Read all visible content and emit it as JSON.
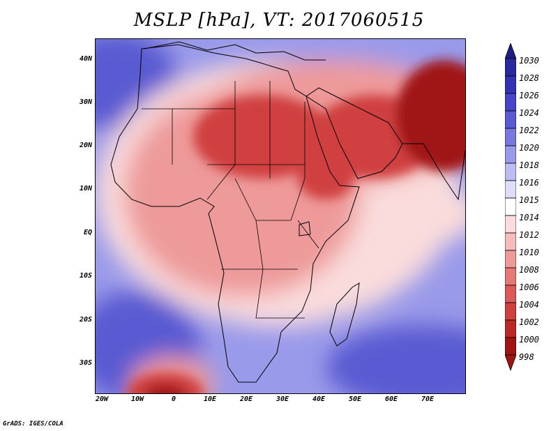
{
  "title": "MSLP [hPa], VT: 2017060515",
  "credit": "GrADS: IGES/COLA",
  "axes": {
    "lat_labels": [
      "40N",
      "30N",
      "20N",
      "10N",
      "EQ",
      "10S",
      "20S",
      "30S"
    ],
    "lon_labels": [
      "20W",
      "10W",
      "0",
      "10E",
      "20E",
      "30E",
      "40E",
      "50E",
      "60E",
      "70E"
    ]
  },
  "colorbar": {
    "levels": [
      "1030",
      "1028",
      "1026",
      "1024",
      "1022",
      "1020",
      "1018",
      "1016",
      "1015",
      "1014",
      "1012",
      "1010",
      "1008",
      "1006",
      "1004",
      "1002",
      "1000",
      "998"
    ],
    "colors": [
      "#1e1e82",
      "#2828a0",
      "#3232b4",
      "#4646c8",
      "#5a5ad2",
      "#7878e0",
      "#9a9aea",
      "#bcbcf4",
      "#dedefa",
      "#ffffff",
      "#fadcdc",
      "#f5bcbc",
      "#ee9a9a",
      "#e67878",
      "#dc5a5a",
      "#d04040",
      "#bc2828",
      "#a01414"
    ],
    "top_arrow_color": "#1e1e82",
    "bottom_arrow_color": "#a01414"
  },
  "map_colors": {
    "ocean_high": "#5a5ad2",
    "ocean_mid": "#9a9aea",
    "neutral": "#fadcdc",
    "land_low": "#ee9a9a",
    "heat_low": "#d04040",
    "heat_core": "#a01414"
  }
}
